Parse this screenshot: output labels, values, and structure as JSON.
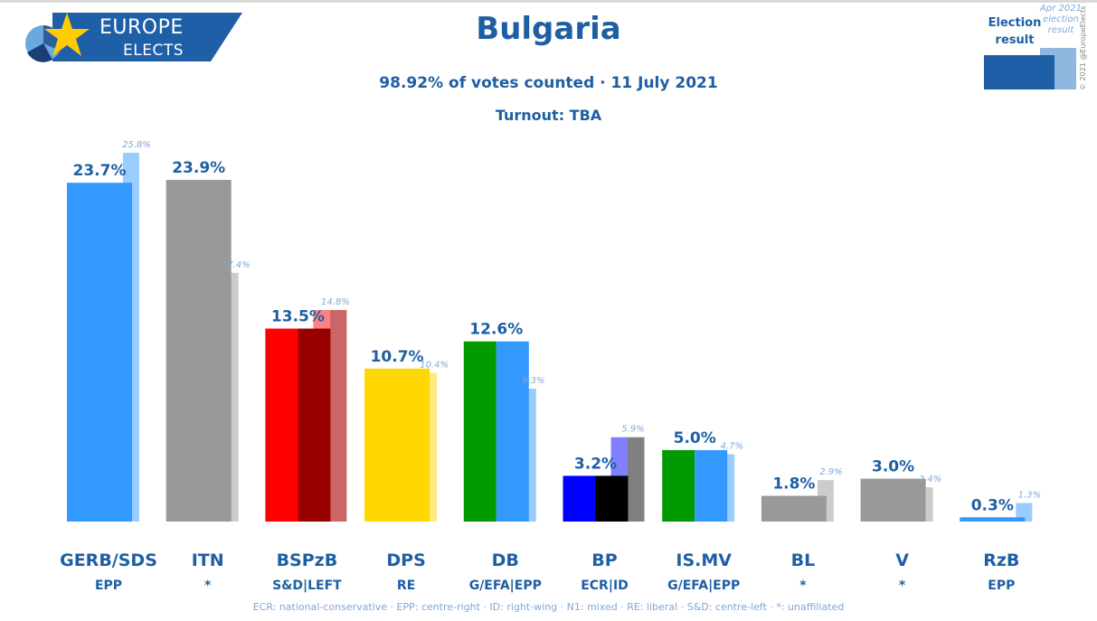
{
  "header": {
    "title": "Bulgaria",
    "subtitle": "98.92% of votes counted · 11 July 2021",
    "turnout": "Turnout: TBA"
  },
  "logo": {
    "line1": "EUROPE",
    "line2": "ELECTS"
  },
  "legend": {
    "current_label": "Election result",
    "previous_label": "Apr 2021 election result"
  },
  "copyright": "© 2021 @EuropeElects",
  "footnote": "ECR: national-conservative · EPP: centre-right · ID: right-wing · N1: mixed · RE: liberal · S&D: centre-left · *: unaffiliated",
  "chart_data": {
    "type": "bar",
    "categories": [
      "GERB/SDS",
      "ITN",
      "BSPzB",
      "DPS",
      "DB",
      "BP",
      "IS.MV",
      "BL",
      "V",
      "RzB"
    ],
    "groups": [
      "EPP",
      "*",
      "S&D|LEFT",
      "RE",
      "G/EFA|EPP",
      "ECR|ID",
      "G/EFA|EPP",
      "*",
      "*",
      "EPP"
    ],
    "series": [
      {
        "name": "Election result",
        "values": [
          23.7,
          23.9,
          13.5,
          10.7,
          12.6,
          3.2,
          5.0,
          1.8,
          3.0,
          0.3
        ]
      },
      {
        "name": "Apr 2021 election result",
        "values": [
          25.8,
          17.4,
          14.8,
          10.4,
          9.3,
          5.9,
          4.7,
          2.9,
          2.4,
          1.3
        ]
      }
    ],
    "value_labels": [
      "23.7%",
      "23.9%",
      "13.5%",
      "10.7%",
      "12.6%",
      "3.2%",
      "5.0%",
      "1.8%",
      "3.0%",
      "0.3%"
    ],
    "previous_labels": [
      "25.8%",
      "17.4%",
      "14.8%",
      "10.4%",
      "9.3%",
      "5.9%",
      "4.7%",
      "2.9%",
      "2.4%",
      "1.3%"
    ],
    "colors": [
      [
        "#3399ff"
      ],
      [
        "#999999"
      ],
      [
        "#ff0000",
        "#990000"
      ],
      [
        "#ffd700"
      ],
      [
        "#009900",
        "#3399ff"
      ],
      [
        "#0000ff",
        "#000000"
      ],
      [
        "#009900",
        "#3399ff"
      ],
      [
        "#999999"
      ],
      [
        "#999999"
      ],
      [
        "#3399ff"
      ]
    ],
    "previous_colors": [
      [
        "#99ccff"
      ],
      [
        "#cccccc"
      ],
      [
        "#ff8080",
        "#cc6666"
      ],
      [
        "#ffeb80"
      ],
      [
        "#99ccff"
      ],
      [
        "#8080ff",
        "#808080"
      ],
      [
        "#99ccff"
      ],
      [
        "#cccccc"
      ],
      [
        "#cccccc"
      ],
      [
        "#99ccff"
      ]
    ],
    "ylim": [
      0,
      27
    ],
    "xlabel": "",
    "ylabel": "",
    "grid": false,
    "legend_position": "top-right"
  }
}
